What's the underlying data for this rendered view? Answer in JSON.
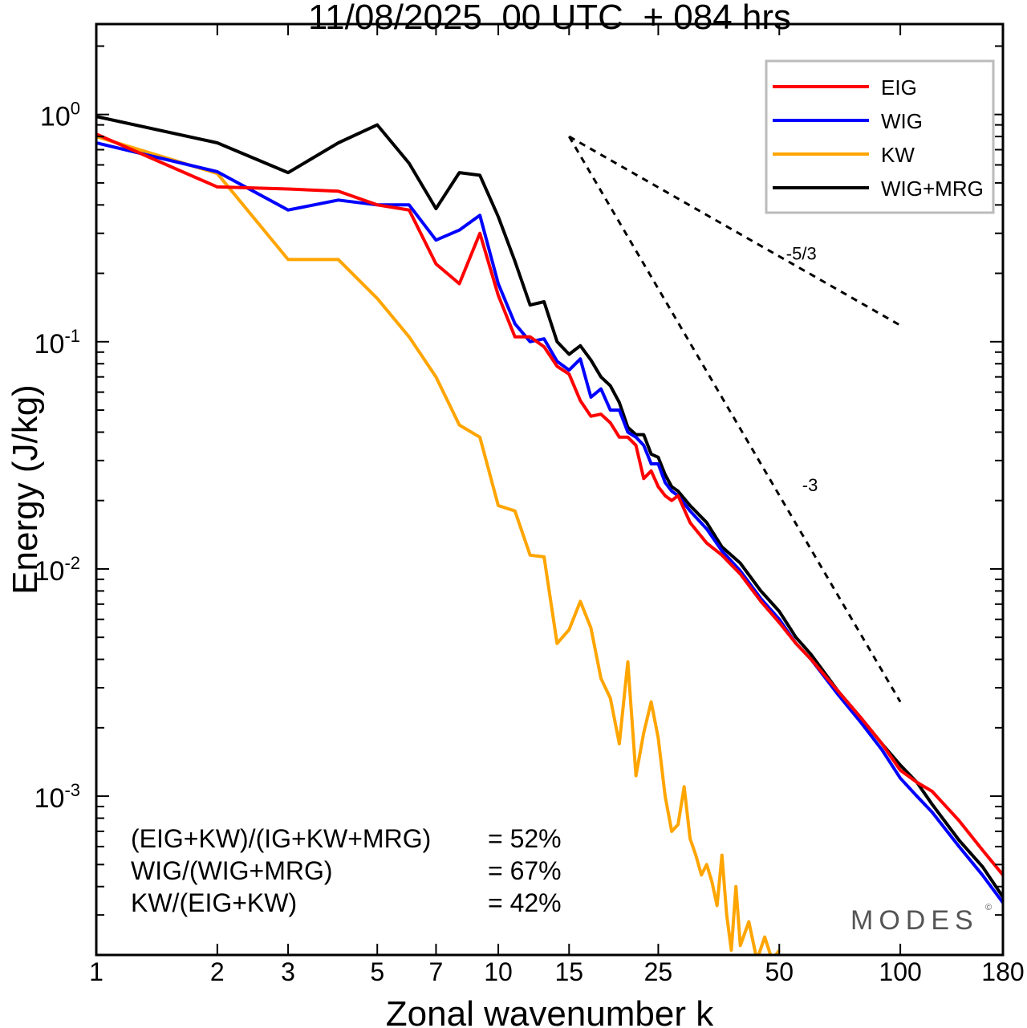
{
  "chart_data": {
    "type": "line",
    "title": "11/08/2025  00 UTC  + 084 hrs",
    "xlabel": "Zonal wavenumber k",
    "ylabel": "Energy (J/kg)",
    "xscale": "log",
    "yscale": "log",
    "xlim": [
      1,
      180
    ],
    "ylim": [
      0.0002,
      2.5
    ],
    "xticks": [
      1,
      2,
      3,
      5,
      7,
      10,
      15,
      25,
      50,
      100,
      180
    ],
    "xtick_labels": [
      "1",
      "2",
      "3",
      "5",
      "7",
      "10",
      "15",
      "25",
      "50",
      "100",
      "180"
    ],
    "yticks": [
      1,
      0.1,
      0.01,
      0.001
    ],
    "ytick_labels": [
      {
        "base": "10",
        "exp": "0"
      },
      {
        "base": "10",
        "exp": "-1"
      },
      {
        "base": "10",
        "exp": "-2"
      },
      {
        "base": "10",
        "exp": "-3"
      }
    ],
    "legend_position": "top-right",
    "series": [
      {
        "name": "EIG",
        "color": "#ff0000",
        "x": [
          1,
          2,
          3,
          4,
          5,
          6,
          7,
          8,
          9,
          10,
          11,
          12,
          13,
          14,
          15,
          16,
          17,
          18,
          19,
          20,
          21,
          22,
          23,
          24,
          25,
          26,
          27,
          28,
          30,
          33,
          36,
          40,
          45,
          50,
          55,
          60,
          70,
          80,
          90,
          100,
          110,
          120,
          140,
          160,
          180
        ],
        "y": [
          0.82,
          0.48,
          0.47,
          0.46,
          0.4,
          0.38,
          0.22,
          0.18,
          0.3,
          0.16,
          0.105,
          0.105,
          0.095,
          0.078,
          0.072,
          0.055,
          0.047,
          0.048,
          0.044,
          0.038,
          0.038,
          0.035,
          0.025,
          0.027,
          0.023,
          0.021,
          0.02,
          0.021,
          0.016,
          0.013,
          0.0115,
          0.0095,
          0.0072,
          0.0058,
          0.0047,
          0.004,
          0.0029,
          0.0022,
          0.0017,
          0.0013,
          0.00115,
          0.00105,
          0.00078,
          0.00058,
          0.00045
        ]
      },
      {
        "name": "WIG",
        "color": "#0000ff",
        "x": [
          1,
          2,
          3,
          4,
          5,
          6,
          7,
          8,
          9,
          10,
          11,
          12,
          13,
          14,
          15,
          16,
          17,
          18,
          19,
          20,
          21,
          22,
          23,
          24,
          25,
          26,
          27,
          28,
          30,
          33,
          36,
          40,
          45,
          50,
          55,
          60,
          70,
          80,
          90,
          100,
          110,
          120,
          140,
          160,
          180
        ],
        "y": [
          0.75,
          0.56,
          0.38,
          0.42,
          0.4,
          0.4,
          0.28,
          0.31,
          0.36,
          0.18,
          0.12,
          0.1,
          0.103,
          0.082,
          0.075,
          0.084,
          0.057,
          0.062,
          0.05,
          0.05,
          0.04,
          0.038,
          0.035,
          0.029,
          0.029,
          0.024,
          0.022,
          0.021,
          0.018,
          0.015,
          0.012,
          0.0098,
          0.0074,
          0.006,
          0.0047,
          0.004,
          0.0028,
          0.0021,
          0.0016,
          0.0012,
          0.001,
          0.00085,
          0.0006,
          0.00045,
          0.00034
        ]
      },
      {
        "name": "KW",
        "color": "#ffa500",
        "x": [
          1,
          2,
          3,
          4,
          5,
          6,
          7,
          8,
          9,
          10,
          11,
          12,
          13,
          14,
          15,
          16,
          17,
          18,
          19,
          20,
          21,
          22,
          23,
          24,
          25,
          26,
          27,
          28,
          29,
          30,
          31,
          32,
          33,
          34,
          35,
          36,
          37,
          38,
          39,
          40,
          42,
          44,
          46,
          48,
          50
        ],
        "y": [
          0.8,
          0.55,
          0.23,
          0.23,
          0.155,
          0.105,
          0.07,
          0.043,
          0.038,
          0.019,
          0.018,
          0.0115,
          0.0113,
          0.0047,
          0.0054,
          0.0072,
          0.0055,
          0.0033,
          0.0027,
          0.0017,
          0.0039,
          0.00123,
          0.0019,
          0.0026,
          0.0018,
          0.001,
          0.0007,
          0.00075,
          0.0011,
          0.00065,
          0.00055,
          0.00045,
          0.0005,
          0.00042,
          0.00033,
          0.00055,
          0.0003,
          0.00021,
          0.0004,
          0.00022,
          0.00028,
          0.00019,
          0.00024,
          0.00019,
          0.00021
        ]
      },
      {
        "name": "WIG+MRG",
        "color": "#000000",
        "x": [
          1,
          2,
          3,
          4,
          5,
          6,
          7,
          8,
          9,
          10,
          11,
          12,
          13,
          14,
          15,
          16,
          17,
          18,
          19,
          20,
          21,
          22,
          23,
          24,
          25,
          26,
          27,
          28,
          30,
          33,
          36,
          40,
          45,
          50,
          55,
          60,
          70,
          80,
          90,
          100,
          110,
          120,
          140,
          160,
          180
        ],
        "y": [
          0.98,
          0.75,
          0.555,
          0.75,
          0.9,
          0.61,
          0.385,
          0.555,
          0.54,
          0.355,
          0.226,
          0.145,
          0.15,
          0.1,
          0.088,
          0.096,
          0.083,
          0.07,
          0.064,
          0.054,
          0.042,
          0.039,
          0.039,
          0.032,
          0.031,
          0.026,
          0.023,
          0.022,
          0.019,
          0.016,
          0.0125,
          0.0106,
          0.008,
          0.0065,
          0.005,
          0.0042,
          0.0029,
          0.0022,
          0.0017,
          0.00137,
          0.00115,
          0.00092,
          0.00064,
          0.00049,
          0.00036
        ]
      }
    ],
    "reference_lines": [
      {
        "label": "-5/3",
        "x": [
          15,
          100
        ],
        "y": [
          0.8,
          0.118
        ],
        "label_at": [
          52,
          0.23
        ]
      },
      {
        "label": "-3",
        "x": [
          15,
          100
        ],
        "y": [
          0.8,
          0.0026
        ],
        "label_at": [
          57,
          0.022
        ]
      }
    ],
    "annotations": [
      {
        "label": "(EIG+KW)/(IG+KW+MRG)",
        "value": "= 52%"
      },
      {
        "label": "WIG/(WIG+MRG)",
        "value": "= 67%"
      },
      {
        "label": "KW/(EIG+KW)",
        "value": "= 42%"
      }
    ],
    "watermark": "MODES",
    "watermark_mark": "©"
  }
}
